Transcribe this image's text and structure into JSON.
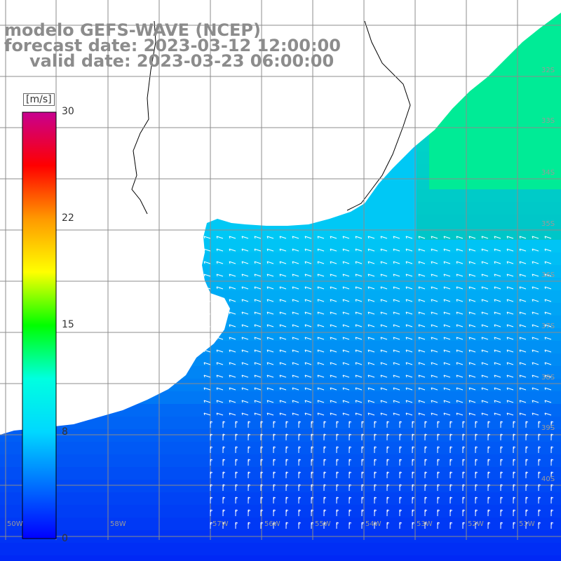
{
  "title": {
    "line1": "modelo GEFS-WAVE (NCEP)",
    "line2": "forecast date: 2023-03-12 12:00:00",
    "line3": "valid date: 2023-03-23 06:00:00"
  },
  "colorbar": {
    "unit": "[m/s]",
    "ticks": [
      "30",
      "22",
      "15",
      "8",
      "0"
    ],
    "tick_values": [
      30,
      22,
      15,
      8,
      0
    ],
    "colors": [
      "#0000ff",
      "#0070ff",
      "#00d8ff",
      "#00ffe0",
      "#00ff00",
      "#ffff00",
      "#ff9900",
      "#ff0000",
      "#c80090"
    ]
  },
  "map": {
    "land_color": "#ffffff",
    "coast_color": "#000000",
    "grid_color": "#8c8c8c",
    "lat_labels": [
      "32S",
      "33S",
      "34S",
      "35S",
      "36S",
      "37S",
      "38S",
      "39S",
      "40S"
    ],
    "lon_labels": [
      "58W",
      "57W",
      "56W",
      "55W",
      "54W",
      "53W",
      "52W",
      "51W",
      "50W"
    ]
  }
}
